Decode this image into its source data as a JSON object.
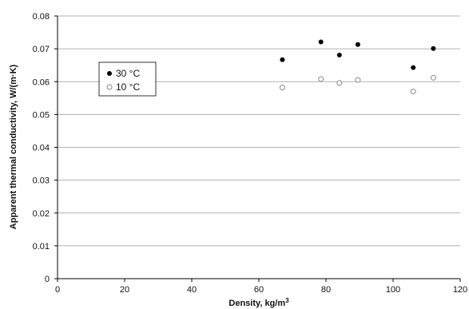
{
  "chart_data": {
    "type": "scatter",
    "xlabel": "Density, kg/m",
    "xlabel_superscript": "3",
    "ylabel": "Apparent thermal conductivity, W/(m·K)",
    "xlim": [
      0,
      120
    ],
    "ylim": [
      0,
      0.08
    ],
    "x_ticks": [
      "0",
      "20",
      "40",
      "60",
      "80",
      "100",
      "120"
    ],
    "y_ticks": [
      "0",
      "0.01",
      "0.02",
      "0.03",
      "0.04",
      "0.05",
      "0.06",
      "0.07",
      "0.08"
    ],
    "grid": "horizontal",
    "legend_position": "left",
    "series": [
      {
        "name": "30 °C",
        "marker": "filled-circle",
        "color": "#000000",
        "x": [
          67,
          78.5,
          84,
          89.5,
          106,
          112
        ],
        "y": [
          0.0667,
          0.0721,
          0.0681,
          0.0713,
          0.0643,
          0.0701
        ]
      },
      {
        "name": "10 °C",
        "marker": "open-circle",
        "color": "#888888",
        "x": [
          67,
          78.5,
          84,
          89.5,
          106,
          112
        ],
        "y": [
          0.0582,
          0.0608,
          0.0596,
          0.0605,
          0.057,
          0.0612
        ]
      }
    ]
  }
}
